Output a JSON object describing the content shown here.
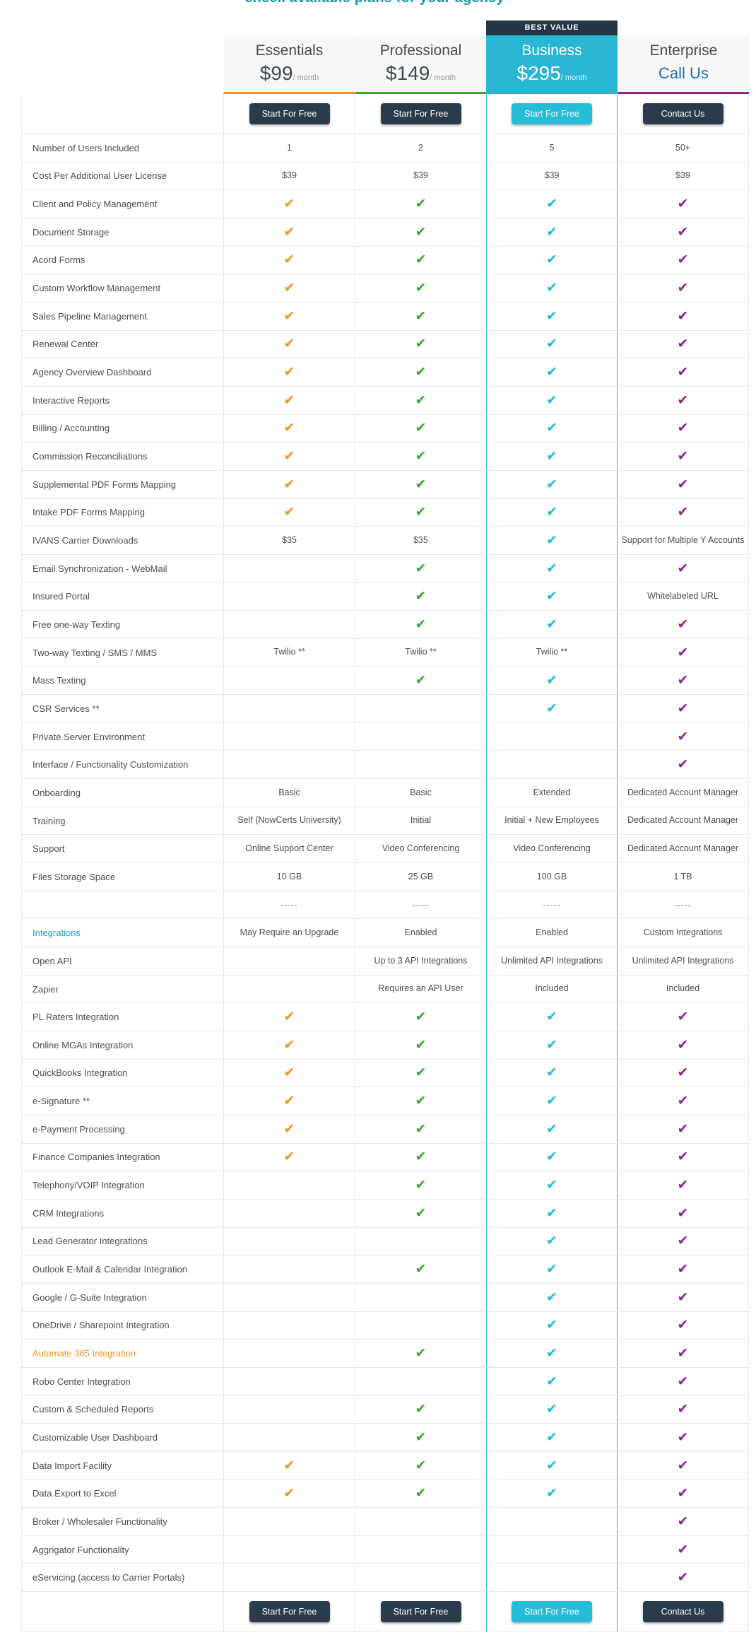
{
  "page_title": "check available plans for your agency",
  "check_symbol": "✔",
  "separator": "-----",
  "colors": {
    "essentials_accent": "#F0941F",
    "professional_accent": "#3CA635",
    "business_accent": "#27B9D4",
    "enterprise_accent": "#8C2491",
    "button_navy": "#2A3B4C",
    "badge_bg": "#243645",
    "call_us_blue": "#1D6FAE"
  },
  "plans": [
    {
      "name": "Essentials",
      "price": "$99",
      "period": "/ month",
      "cta": "Start For Free",
      "accent": "#F0941F",
      "badge": ""
    },
    {
      "name": "Professional",
      "price": "$149",
      "period": "/ month",
      "cta": "Start For Free",
      "accent": "#3CA635",
      "badge": ""
    },
    {
      "name": "Business",
      "price": "$295",
      "period": "/ month",
      "cta": "Start For Free",
      "accent": "#27B9D4",
      "badge": "BEST VALUE"
    },
    {
      "name": "Enterprise",
      "price": "Call Us",
      "period": "",
      "cta": "Contact Us",
      "accent": "#8C2491",
      "badge": ""
    }
  ],
  "rows": [
    {
      "label": "Number of Users Included",
      "cells": [
        "1",
        "2",
        "5",
        "50+"
      ]
    },
    {
      "label": "Cost Per Additional User License",
      "cells": [
        "$39",
        "$39",
        "$39",
        "$39"
      ]
    },
    {
      "label": "Client and Policy Management",
      "cells": [
        "CHECK",
        "CHECK",
        "CHECK",
        "CHECK"
      ]
    },
    {
      "label": "Document Storage",
      "cells": [
        "CHECK",
        "CHECK",
        "CHECK",
        "CHECK"
      ]
    },
    {
      "label": "Acord Forms",
      "cells": [
        "CHECK",
        "CHECK",
        "CHECK",
        "CHECK"
      ]
    },
    {
      "label": "Custom Workflow Management",
      "cells": [
        "CHECK",
        "CHECK",
        "CHECK",
        "CHECK"
      ]
    },
    {
      "label": "Sales Pipeline Management",
      "cells": [
        "CHECK",
        "CHECK",
        "CHECK",
        "CHECK"
      ]
    },
    {
      "label": "Renewal Center",
      "cells": [
        "CHECK",
        "CHECK",
        "CHECK",
        "CHECK"
      ]
    },
    {
      "label": "Agency Overview Dashboard",
      "cells": [
        "CHECK",
        "CHECK",
        "CHECK",
        "CHECK"
      ]
    },
    {
      "label": "Interactive Reports",
      "cells": [
        "CHECK",
        "CHECK",
        "CHECK",
        "CHECK"
      ]
    },
    {
      "label": "Billing / Accounting",
      "cells": [
        "CHECK",
        "CHECK",
        "CHECK",
        "CHECK"
      ]
    },
    {
      "label": "Commission Reconciliations",
      "cells": [
        "CHECK",
        "CHECK",
        "CHECK",
        "CHECK"
      ]
    },
    {
      "label": "Supplemental PDF Forms Mapping",
      "cells": [
        "CHECK",
        "CHECK",
        "CHECK",
        "CHECK"
      ]
    },
    {
      "label": "Intake PDF Forms Mapping",
      "cells": [
        "CHECK",
        "CHECK",
        "CHECK",
        "CHECK"
      ]
    },
    {
      "label": "IVANS Carrier Downloads",
      "cells": [
        "$35",
        "$35",
        "CHECK",
        "Support for Multiple Y Accounts"
      ]
    },
    {
      "label": "Email Synchronization - WebMail",
      "cells": [
        "",
        "CHECK",
        "CHECK",
        "CHECK"
      ]
    },
    {
      "label": "Insured Portal",
      "cells": [
        "",
        "CHECK",
        "CHECK",
        "Whitelabeled URL"
      ]
    },
    {
      "label": "Free one-way Texting",
      "cells": [
        "",
        "CHECK",
        "CHECK",
        "CHECK"
      ]
    },
    {
      "label": "Two-way Texting / SMS / MMS",
      "cells": [
        "Twilio **",
        "Twilio **",
        "Twilio **",
        "CHECK"
      ]
    },
    {
      "label": "Mass Texting",
      "cells": [
        "",
        "CHECK",
        "CHECK",
        "CHECK"
      ]
    },
    {
      "label": "CSR Services **",
      "cells": [
        "",
        "",
        "CHECK",
        "CHECK"
      ]
    },
    {
      "label": "Private Server Environment",
      "cells": [
        "",
        "",
        "",
        "CHECK"
      ]
    },
    {
      "label": "Interface / Functionality Customization",
      "cells": [
        "",
        "",
        "",
        "CHECK"
      ]
    },
    {
      "label": "Onboarding",
      "cells": [
        "Basic",
        "Basic",
        "Extended",
        "Dedicated Account Manager"
      ]
    },
    {
      "label": "Training",
      "cells": [
        "Self (NowCerts University)",
        "Initial",
        "Initial + New Employees",
        "Dedicated Account Manager"
      ]
    },
    {
      "label": "Support",
      "cells": [
        "Online Support Center",
        "Video Conferencing",
        "Video Conferencing",
        "Dedicated Account Manager"
      ]
    },
    {
      "label": "Files Storage Space",
      "cells": [
        "10 GB",
        "25 GB",
        "100 GB",
        "1 TB"
      ]
    },
    {
      "label": "",
      "cells": [
        "-----",
        "-----",
        "-----",
        "-----"
      ],
      "dashes": true
    },
    {
      "label": "Integrations",
      "style": "teal",
      "cells": [
        "May Require an Upgrade",
        "Enabled",
        "Enabled",
        "Custom Integrations"
      ]
    },
    {
      "label": "Open API",
      "cells": [
        "",
        "Up to 3 API Integrations",
        "Unlimited API Integrations",
        "Unlimited API Integrations"
      ]
    },
    {
      "label": "Zapier",
      "cells": [
        "",
        "Requires an API User",
        "Included",
        "Included"
      ]
    },
    {
      "label": "PL Raters Integration",
      "cells": [
        "CHECK",
        "CHECK",
        "CHECK",
        "CHECK"
      ]
    },
    {
      "label": "Online MGAs Integration",
      "cells": [
        "CHECK",
        "CHECK",
        "CHECK",
        "CHECK"
      ]
    },
    {
      "label": "QuickBooks Integration",
      "cells": [
        "CHECK",
        "CHECK",
        "CHECK",
        "CHECK"
      ]
    },
    {
      "label": "e-Signature **",
      "cells": [
        "CHECK",
        "CHECK",
        "CHECK",
        "CHECK"
      ]
    },
    {
      "label": "e-Payment Processing",
      "cells": [
        "CHECK",
        "CHECK",
        "CHECK",
        "CHECK"
      ]
    },
    {
      "label": "Finance Companies Integration",
      "cells": [
        "CHECK",
        "CHECK",
        "CHECK",
        "CHECK"
      ]
    },
    {
      "label": "Telephony/VOIP Integration",
      "cells": [
        "",
        "CHECK",
        "CHECK",
        "CHECK"
      ]
    },
    {
      "label": "CRM Integrations",
      "cells": [
        "",
        "CHECK",
        "CHECK",
        "CHECK"
      ]
    },
    {
      "label": "Lead Generator Integrations",
      "cells": [
        "",
        "",
        "CHECK",
        "CHECK"
      ]
    },
    {
      "label": "Outlook E-Mail & Calendar Integration",
      "cells": [
        "",
        "CHECK",
        "CHECK",
        "CHECK"
      ]
    },
    {
      "label": "Google / G-Suite Integration",
      "cells": [
        "",
        "",
        "CHECK",
        "CHECK"
      ]
    },
    {
      "label": "OneDrive / Sharepoint Integration",
      "cells": [
        "",
        "",
        "CHECK",
        "CHECK"
      ]
    },
    {
      "label": "Automate 365 Integration",
      "style": "orange",
      "cells": [
        "",
        "CHECK",
        "CHECK",
        "CHECK"
      ]
    },
    {
      "label": "Robo Center Integration",
      "cells": [
        "",
        "",
        "CHECK",
        "CHECK"
      ]
    },
    {
      "label": "Custom & Scheduled Reports",
      "cells": [
        "",
        "CHECK",
        "CHECK",
        "CHECK"
      ]
    },
    {
      "label": "Customizable User Dashboard",
      "cells": [
        "",
        "CHECK",
        "CHECK",
        "CHECK"
      ]
    },
    {
      "label": "Data Import Facility",
      "cells": [
        "CHECK",
        "CHECK",
        "CHECK",
        "CHECK"
      ]
    },
    {
      "label": "Data Export to Excel",
      "cells": [
        "CHECK",
        "CHECK",
        "CHECK",
        "CHECK"
      ]
    },
    {
      "label": "Broker / Wholesaler Functionality",
      "cells": [
        "",
        "",
        "",
        "CHECK"
      ]
    },
    {
      "label": "Aggrigator Functionality",
      "cells": [
        "",
        "",
        "",
        "CHECK"
      ]
    },
    {
      "label": "eServicing (access to Carrier Portals)",
      "cells": [
        "",
        "",
        "",
        "CHECK"
      ]
    }
  ]
}
